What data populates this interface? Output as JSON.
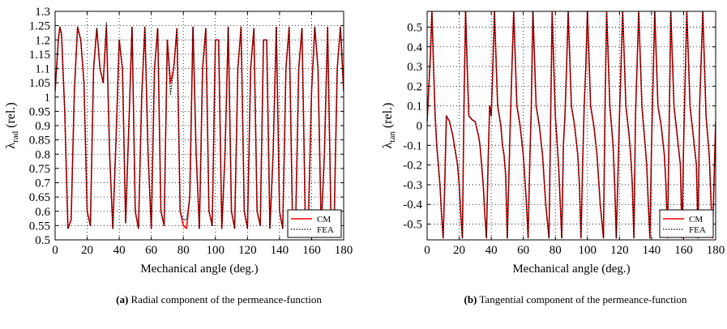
{
  "chart_data": [
    {
      "type": "line",
      "panel_label": "(a)",
      "caption": "Radial component of the permeance-function",
      "xlabel": "Mechanical angle (deg.)",
      "ylabel_main": "λ",
      "ylabel_sub": "rad",
      "ylabel_tail": " (rel.)",
      "xlim": [
        0,
        180
      ],
      "ylim": [
        0.5,
        1.3
      ],
      "xticks": [
        0,
        20,
        40,
        60,
        80,
        100,
        120,
        140,
        160,
        180
      ],
      "yticks": [
        0.5,
        0.55,
        0.6,
        0.65,
        0.7,
        0.75,
        0.8,
        0.85,
        0.9,
        0.95,
        1,
        1.05,
        1.1,
        1.15,
        1.2,
        1.25,
        1.3
      ],
      "grid": true,
      "legend_position": "bottom-right",
      "x": [
        0,
        2,
        3,
        4,
        6,
        8,
        10,
        12,
        14,
        16,
        18,
        20,
        22,
        24,
        26,
        28,
        30,
        32,
        34,
        36,
        38,
        40,
        42,
        44,
        46,
        48,
        50,
        52,
        54,
        56,
        58,
        60,
        62,
        64,
        66,
        68,
        70,
        72,
        74,
        76,
        78,
        80,
        82,
        84,
        86,
        88,
        90,
        92,
        94,
        96,
        98,
        100,
        102,
        104,
        106,
        108,
        110,
        112,
        114,
        116,
        118,
        120,
        122,
        124,
        126,
        128,
        130,
        132,
        134,
        136,
        138,
        140,
        142,
        144,
        146,
        148,
        150,
        152,
        154,
        156,
        158,
        160,
        162,
        164,
        166,
        168,
        170,
        172,
        174,
        176,
        178,
        180
      ],
      "series": [
        {
          "name": "CM",
          "color": "#ff0000",
          "style": "solid",
          "values": [
            1.02,
            1.2,
            1.245,
            1.22,
            0.95,
            0.54,
            0.57,
            1.02,
            1.245,
            1.2,
            1.05,
            0.6,
            0.55,
            1.1,
            1.24,
            1.1,
            1.05,
            1.245,
            0.8,
            0.54,
            0.85,
            1.2,
            1.1,
            0.56,
            0.9,
            1.245,
            0.6,
            0.54,
            1.0,
            1.245,
            0.8,
            0.54,
            1.1,
            1.24,
            0.6,
            0.55,
            1.2,
            1.05,
            1.1,
            1.24,
            0.6,
            0.55,
            0.54,
            0.65,
            1.245,
            0.8,
            0.54,
            1.1,
            1.24,
            0.6,
            0.55,
            1.2,
            1.2,
            0.54,
            0.8,
            1.245,
            0.6,
            0.54,
            1.1,
            1.245,
            0.6,
            0.54,
            1.1,
            1.24,
            0.6,
            0.55,
            1.2,
            1.2,
            0.54,
            0.8,
            1.245,
            0.6,
            0.54,
            1.1,
            1.245,
            0.6,
            0.54,
            1.1,
            1.24,
            0.6,
            0.56,
            1.02,
            1.245,
            1.1,
            0.54,
            0.8,
            1.245,
            0.6,
            0.54,
            1.1,
            1.245,
            1.02
          ]
        },
        {
          "name": "FEA",
          "color": "#000000",
          "style": "dotted",
          "values": [
            1.02,
            1.2,
            1.245,
            1.22,
            0.95,
            0.54,
            0.57,
            1.02,
            1.245,
            1.2,
            1.05,
            0.6,
            0.55,
            1.1,
            1.24,
            1.1,
            1.05,
            1.26,
            0.8,
            0.54,
            0.85,
            1.2,
            1.1,
            0.56,
            0.9,
            1.245,
            0.6,
            0.54,
            1.0,
            1.245,
            0.8,
            0.54,
            1.1,
            1.24,
            0.6,
            0.55,
            1.2,
            1.01,
            1.1,
            1.24,
            0.6,
            0.57,
            0.57,
            0.65,
            1.245,
            0.8,
            0.54,
            1.1,
            1.24,
            0.6,
            0.55,
            1.2,
            1.2,
            0.54,
            0.8,
            1.245,
            0.6,
            0.54,
            1.1,
            1.245,
            0.6,
            0.54,
            1.1,
            1.24,
            0.6,
            0.55,
            1.2,
            1.2,
            0.54,
            0.8,
            1.245,
            0.6,
            0.54,
            1.1,
            1.245,
            0.6,
            0.54,
            1.1,
            1.24,
            0.6,
            0.56,
            1.02,
            1.245,
            1.1,
            0.54,
            0.8,
            1.245,
            0.6,
            0.54,
            1.1,
            1.245,
            1.02
          ]
        }
      ]
    },
    {
      "type": "line",
      "panel_label": "(b)",
      "caption": "Tangential component of the permeance-function",
      "xlabel": "Mechanical angle (deg.)",
      "ylabel_main": "λ",
      "ylabel_sub": "tan",
      "ylabel_tail": " (rel.)",
      "xlim": [
        0,
        180
      ],
      "ylim": [
        -0.58,
        0.58
      ],
      "xticks": [
        0,
        20,
        40,
        60,
        80,
        100,
        120,
        140,
        160,
        180
      ],
      "yticks": [
        -0.5,
        -0.4,
        -0.3,
        -0.2,
        -0.1,
        0,
        0.1,
        0.2,
        0.3,
        0.4,
        0.5
      ],
      "grid": true,
      "legend_position": "bottom-right",
      "x": [
        0,
        2,
        3,
        4,
        5,
        6,
        7,
        8,
        9,
        10,
        11,
        12,
        14,
        16,
        17,
        18,
        19,
        20,
        21,
        22,
        23,
        24,
        25,
        26,
        28,
        30,
        32,
        33,
        34,
        35,
        36,
        37,
        38,
        39,
        40,
        41,
        42,
        44,
        46,
        47,
        48,
        49,
        50,
        52,
        54,
        56,
        58,
        60,
        62,
        63,
        64,
        65,
        66,
        68,
        70,
        72,
        74,
        76,
        78,
        79,
        80,
        82,
        84,
        85,
        86,
        87,
        88,
        90,
        92,
        94,
        95,
        96,
        97,
        98,
        99,
        100,
        102,
        104,
        106,
        108,
        110,
        111,
        112,
        114,
        116,
        117,
        118,
        120,
        122,
        124,
        126,
        127,
        128,
        129,
        130,
        132,
        134,
        136,
        137,
        138,
        139,
        140,
        142,
        144,
        146,
        148,
        149,
        150,
        152,
        154,
        156,
        158,
        159,
        160,
        162,
        164,
        166,
        168,
        169,
        170,
        172,
        174,
        176,
        178,
        180
      ],
      "series": [
        {
          "name": "CM",
          "color": "#ff0000",
          "style": "solid",
          "values": [
            0.02,
            0.35,
            0.58,
            0.3,
            0.05,
            -0.1,
            -0.2,
            -0.3,
            -0.45,
            -0.57,
            -0.3,
            0.05,
            0.02,
            -0.05,
            -0.1,
            -0.15,
            -0.2,
            -0.3,
            -0.45,
            -0.57,
            0.1,
            0.58,
            0.3,
            0.05,
            0.03,
            0.02,
            -0.05,
            -0.1,
            -0.2,
            -0.3,
            -0.45,
            -0.57,
            -0.2,
            0.1,
            0.05,
            0.3,
            0.58,
            0.1,
            0.0,
            -0.1,
            -0.15,
            -0.25,
            -0.57,
            0.05,
            0.58,
            0.1,
            0.0,
            -0.15,
            -0.4,
            -0.57,
            -0.2,
            0.1,
            0.58,
            0.1,
            0.0,
            -0.15,
            -0.4,
            -0.57,
            0.58,
            0.3,
            0.05,
            -0.2,
            -0.57,
            -0.1,
            0.05,
            0.3,
            0.58,
            0.1,
            0.0,
            -0.15,
            -0.3,
            -0.57,
            -0.2,
            0.1,
            0.3,
            0.58,
            0.1,
            0.0,
            -0.15,
            -0.4,
            -0.57,
            0.1,
            0.58,
            0.1,
            -0.1,
            -0.3,
            -0.57,
            0.05,
            0.58,
            0.1,
            -0.05,
            -0.15,
            -0.3,
            -0.57,
            0.05,
            0.58,
            0.1,
            -0.1,
            -0.2,
            -0.4,
            -0.57,
            -0.1,
            0.58,
            0.1,
            0.0,
            -0.15,
            -0.3,
            -0.57,
            0.58,
            0.1,
            -0.05,
            -0.2,
            -0.57,
            -0.1,
            0.58,
            0.1,
            -0.05,
            -0.2,
            -0.57,
            0.1,
            0.58,
            0.05,
            -0.15,
            -0.57,
            0.02
          ]
        },
        {
          "name": "FEA",
          "color": "#000000",
          "style": "dotted",
          "values": [
            0.02,
            0.35,
            0.58,
            0.3,
            0.05,
            -0.1,
            -0.2,
            -0.3,
            -0.45,
            -0.57,
            -0.3,
            0.05,
            0.02,
            -0.05,
            -0.1,
            -0.15,
            -0.2,
            -0.3,
            -0.45,
            -0.57,
            0.1,
            0.58,
            0.3,
            0.05,
            0.03,
            0.02,
            -0.05,
            -0.1,
            -0.2,
            -0.3,
            -0.45,
            -0.57,
            -0.2,
            0.1,
            0.05,
            0.3,
            0.58,
            0.1,
            0.0,
            -0.1,
            -0.15,
            -0.25,
            -0.57,
            0.05,
            0.58,
            0.1,
            0.0,
            -0.15,
            -0.4,
            -0.57,
            -0.2,
            0.1,
            0.58,
            0.1,
            0.0,
            -0.15,
            -0.4,
            -0.57,
            0.58,
            0.3,
            0.05,
            -0.2,
            -0.57,
            -0.1,
            0.05,
            0.3,
            0.58,
            0.1,
            0.0,
            -0.15,
            -0.3,
            -0.57,
            -0.2,
            0.1,
            0.3,
            0.58,
            0.1,
            0.0,
            -0.15,
            -0.4,
            -0.57,
            0.1,
            0.58,
            0.1,
            -0.1,
            -0.3,
            -0.57,
            0.05,
            0.58,
            0.1,
            -0.05,
            -0.15,
            -0.3,
            -0.57,
            0.05,
            0.58,
            0.1,
            -0.1,
            -0.2,
            -0.4,
            -0.57,
            -0.1,
            0.58,
            0.1,
            0.0,
            -0.15,
            -0.3,
            -0.57,
            0.58,
            0.1,
            -0.05,
            -0.2,
            -0.57,
            -0.1,
            0.58,
            0.1,
            -0.05,
            -0.2,
            -0.57,
            0.1,
            0.58,
            0.05,
            -0.15,
            -0.57,
            0.02
          ]
        }
      ]
    }
  ]
}
